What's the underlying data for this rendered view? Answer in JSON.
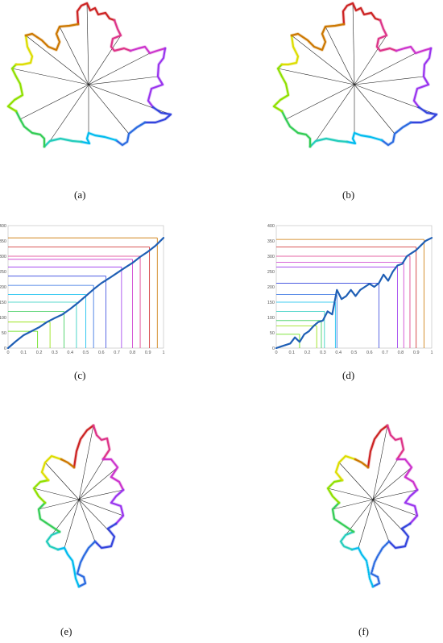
{
  "captions": {
    "a": "(a)",
    "b": "(b)",
    "c": "(c)",
    "d": "(d)",
    "e": "(e)",
    "f": "(f)"
  },
  "chart_data": [
    {
      "type": "line",
      "panel": "c",
      "title": "",
      "xlabel": "",
      "ylabel": "",
      "xlim": [
        0,
        1
      ],
      "ylim": [
        0,
        400
      ],
      "xticks": [
        "0",
        "0.1",
        "0.2",
        "0.3",
        "0.4",
        "0.5",
        "0.6",
        "0.7",
        "0.8",
        "0.9",
        "1"
      ],
      "yticks": [
        "0",
        "50",
        "100",
        "150",
        "200",
        "250",
        "300",
        "350",
        "400"
      ],
      "grid": false,
      "series": [
        {
          "x": [
            0,
            0.05,
            0.1,
            0.15,
            0.2,
            0.25,
            0.3,
            0.35,
            0.4,
            0.45,
            0.5,
            0.55,
            0.6,
            0.65,
            0.7,
            0.75,
            0.8,
            0.85,
            0.9,
            0.95,
            1.0
          ],
          "y": [
            0,
            22,
            42,
            55,
            68,
            85,
            98,
            110,
            128,
            148,
            170,
            192,
            212,
            228,
            245,
            262,
            278,
            298,
            315,
            335,
            360
          ]
        }
      ],
      "markers": [
        {
          "x": 0.19,
          "y": 55,
          "color": "#55dd00"
        },
        {
          "x": 0.27,
          "y": 85,
          "color": "#8fe000"
        },
        {
          "x": 0.36,
          "y": 120,
          "color": "#33cc55"
        },
        {
          "x": 0.44,
          "y": 150,
          "color": "#22ccbb"
        },
        {
          "x": 0.5,
          "y": 175,
          "color": "#00bbee"
        },
        {
          "x": 0.55,
          "y": 205,
          "color": "#2a6ae0"
        },
        {
          "x": 0.63,
          "y": 235,
          "color": "#3344dd"
        },
        {
          "x": 0.73,
          "y": 265,
          "color": "#9933ee"
        },
        {
          "x": 0.8,
          "y": 290,
          "color": "#cc33cc"
        },
        {
          "x": 0.85,
          "y": 300,
          "color": "#dd3388"
        },
        {
          "x": 0.91,
          "y": 330,
          "color": "#cc2222"
        },
        {
          "x": 0.96,
          "y": 360,
          "color": "#cc7700"
        }
      ]
    },
    {
      "type": "line",
      "panel": "d",
      "title": "",
      "xlabel": "",
      "ylabel": "",
      "xlim": [
        0,
        1
      ],
      "ylim": [
        0,
        400
      ],
      "xticks": [
        "0",
        "0.1",
        "0.2",
        "0.3",
        "0.4",
        "0.5",
        "0.6",
        "0.7",
        "0.8",
        "0.9",
        "1"
      ],
      "yticks": [
        "0",
        "50",
        "100",
        "150",
        "200",
        "250",
        "300",
        "350",
        "400"
      ],
      "grid": false,
      "series": [
        {
          "x": [
            0,
            0.03,
            0.06,
            0.09,
            0.12,
            0.15,
            0.18,
            0.21,
            0.24,
            0.27,
            0.3,
            0.33,
            0.36,
            0.39,
            0.42,
            0.45,
            0.48,
            0.51,
            0.54,
            0.57,
            0.6,
            0.63,
            0.66,
            0.69,
            0.72,
            0.75,
            0.78,
            0.81,
            0.84,
            0.87,
            0.9,
            0.93,
            0.96,
            1.0
          ],
          "y": [
            0,
            5,
            10,
            15,
            35,
            20,
            45,
            55,
            72,
            85,
            90,
            120,
            110,
            190,
            160,
            170,
            190,
            170,
            190,
            200,
            210,
            200,
            212,
            240,
            220,
            250,
            270,
            275,
            300,
            310,
            320,
            335,
            350,
            360
          ]
        }
      ],
      "markers": [
        {
          "x": 0.15,
          "y": 45,
          "color": "#55dd00"
        },
        {
          "x": 0.26,
          "y": 72,
          "color": "#8fe000"
        },
        {
          "x": 0.29,
          "y": 90,
          "color": "#33cc55"
        },
        {
          "x": 0.31,
          "y": 120,
          "color": "#22ccbb"
        },
        {
          "x": 0.38,
          "y": 150,
          "color": "#00bbee"
        },
        {
          "x": 0.39,
          "y": 175,
          "color": "#2a6ae0"
        },
        {
          "x": 0.66,
          "y": 212,
          "color": "#3344dd"
        },
        {
          "x": 0.78,
          "y": 265,
          "color": "#9933ee"
        },
        {
          "x": 0.82,
          "y": 280,
          "color": "#cc33cc"
        },
        {
          "x": 0.86,
          "y": 300,
          "color": "#dd3388"
        },
        {
          "x": 0.9,
          "y": 330,
          "color": "#cc2222"
        },
        {
          "x": 0.95,
          "y": 355,
          "color": "#cc7700"
        }
      ]
    }
  ],
  "colors": {
    "spoke": "#222222",
    "curve": "#1f5fb5",
    "palette": [
      "#cc2222",
      "#dd3388",
      "#cc33cc",
      "#9933ee",
      "#3344dd",
      "#2a6ae0",
      "#00bbee",
      "#22ccbb",
      "#33cc55",
      "#8fe000",
      "#dddd00",
      "#cc7700"
    ]
  }
}
